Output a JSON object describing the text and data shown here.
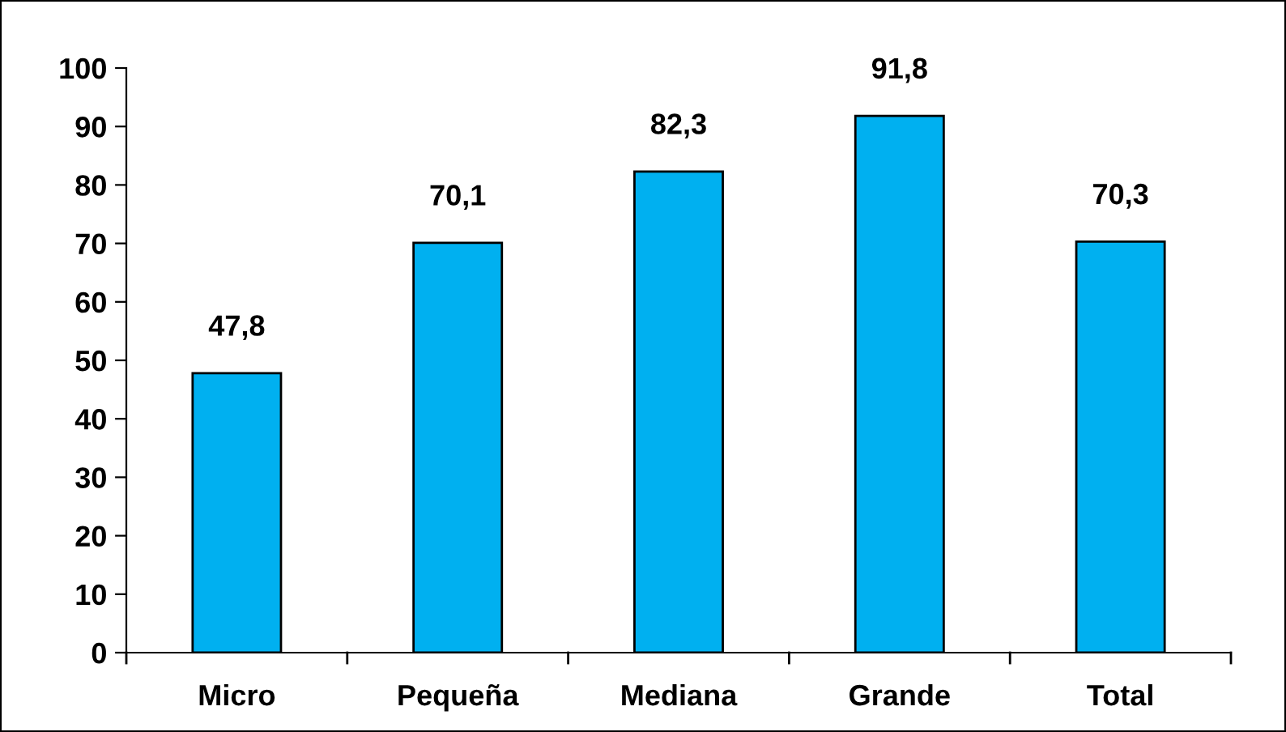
{
  "chart_data": {
    "type": "bar",
    "categories": [
      "Micro",
      "Pequeña",
      "Mediana",
      "Grande",
      "Total"
    ],
    "values": [
      47.8,
      70.1,
      82.3,
      91.8,
      70.3
    ],
    "color": "#00b0f0",
    "ylim": [
      0,
      100
    ],
    "yticks": [
      0,
      10,
      20,
      30,
      40,
      50,
      60,
      70,
      80,
      90,
      100
    ],
    "grid": false,
    "legend": false,
    "value_labels": [
      "47,8",
      "70,1",
      "82,3",
      "91,8",
      "70,3"
    ]
  }
}
